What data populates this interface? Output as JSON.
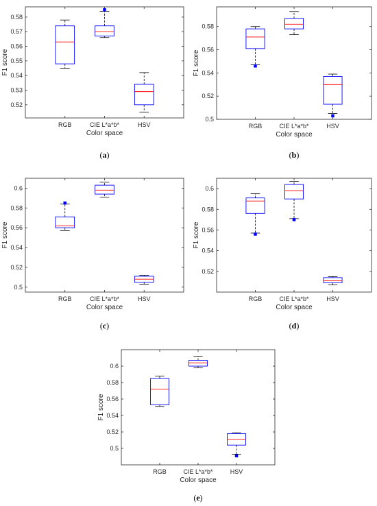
{
  "chart_data": [
    {
      "type": "box",
      "panel_label": "a",
      "xlabel": "Color space",
      "ylabel": "F1 score",
      "categories": [
        "RGB",
        "CIE L*a*b*",
        "HSV"
      ],
      "ylim": [
        0.511,
        0.587
      ],
      "yticks": [
        0.52,
        0.53,
        0.54,
        0.55,
        0.56,
        0.57,
        0.58
      ],
      "ytick_labels": [
        "0.52",
        "0.53",
        "0.54",
        "0.55",
        "0.56",
        "0.57",
        "0.58"
      ],
      "boxes": [
        {
          "whisker_low": 0.545,
          "q1": 0.548,
          "median": 0.563,
          "q3": 0.574,
          "whisker_high": 0.578,
          "outliers": []
        },
        {
          "whisker_low": 0.566,
          "q1": 0.567,
          "median": 0.57,
          "q3": 0.574,
          "whisker_high": 0.584,
          "outliers": [
            0.585
          ]
        },
        {
          "whisker_low": 0.515,
          "q1": 0.52,
          "median": 0.529,
          "q3": 0.534,
          "whisker_high": 0.542,
          "outliers": []
        }
      ]
    },
    {
      "type": "box",
      "panel_label": "b",
      "xlabel": "Color space",
      "ylabel": "F1 score",
      "categories": [
        "RGB",
        "CIE L*a*b*",
        "HSV"
      ],
      "ylim": [
        0.5,
        0.597
      ],
      "yticks": [
        0.5,
        0.52,
        0.54,
        0.56,
        0.58
      ],
      "ytick_labels": [
        "0.5",
        "0.52",
        "0.54",
        "0.56",
        "0.58"
      ],
      "boxes": [
        {
          "whisker_low": 0.547,
          "q1": 0.561,
          "median": 0.571,
          "q3": 0.578,
          "whisker_high": 0.58,
          "outliers": [
            0.546
          ]
        },
        {
          "whisker_low": 0.573,
          "q1": 0.578,
          "median": 0.582,
          "q3": 0.587,
          "whisker_high": 0.593,
          "outliers": []
        },
        {
          "whisker_low": 0.505,
          "q1": 0.513,
          "median": 0.53,
          "q3": 0.537,
          "whisker_high": 0.539,
          "outliers": [
            0.503
          ]
        }
      ]
    },
    {
      "type": "box",
      "panel_label": "c",
      "xlabel": "Color space",
      "ylabel": "F1 score",
      "categories": [
        "RGB",
        "CIE L*a*b*",
        "HSV"
      ],
      "ylim": [
        0.495,
        0.61
      ],
      "yticks": [
        0.5,
        0.52,
        0.54,
        0.56,
        0.58,
        0.6
      ],
      "ytick_labels": [
        "0.5",
        "0.52",
        "0.54",
        "0.56",
        "0.58",
        "0.6"
      ],
      "boxes": [
        {
          "whisker_low": 0.557,
          "q1": 0.56,
          "median": 0.562,
          "q3": 0.571,
          "whisker_high": 0.584,
          "outliers": [
            0.585
          ]
        },
        {
          "whisker_low": 0.591,
          "q1": 0.594,
          "median": 0.598,
          "q3": 0.603,
          "whisker_high": 0.606,
          "outliers": []
        },
        {
          "whisker_low": 0.503,
          "q1": 0.505,
          "median": 0.508,
          "q3": 0.511,
          "whisker_high": 0.512,
          "outliers": []
        }
      ]
    },
    {
      "type": "box",
      "panel_label": "d",
      "xlabel": "Color space",
      "ylabel": "F1 score",
      "categories": [
        "RGB",
        "CIE L*a*b*",
        "HSV"
      ],
      "ylim": [
        0.5,
        0.61
      ],
      "yticks": [
        0.52,
        0.54,
        0.56,
        0.58,
        0.6
      ],
      "ytick_labels": [
        "0.52",
        "0.54",
        "0.56",
        "0.58",
        "0.6"
      ],
      "boxes": [
        {
          "whisker_low": 0.557,
          "q1": 0.576,
          "median": 0.588,
          "q3": 0.591,
          "whisker_high": 0.595,
          "outliers": [
            0.556
          ]
        },
        {
          "whisker_low": 0.571,
          "q1": 0.59,
          "median": 0.598,
          "q3": 0.604,
          "whisker_high": 0.607,
          "outliers": [
            0.57
          ]
        },
        {
          "whisker_low": 0.507,
          "q1": 0.509,
          "median": 0.511,
          "q3": 0.514,
          "whisker_high": 0.515,
          "outliers": []
        }
      ]
    },
    {
      "type": "box",
      "panel_label": "e",
      "xlabel": "Color space",
      "ylabel": "F1 score",
      "categories": [
        "RGB",
        "CIE L*a*b*",
        "HSV"
      ],
      "ylim": [
        0.48,
        0.62
      ],
      "yticks": [
        0.5,
        0.52,
        0.54,
        0.56,
        0.58,
        0.6
      ],
      "ytick_labels": [
        "0.5",
        "0.52",
        "0.54",
        "0.56",
        "0.58",
        "0.6"
      ],
      "boxes": [
        {
          "whisker_low": 0.551,
          "q1": 0.553,
          "median": 0.572,
          "q3": 0.585,
          "whisker_high": 0.588,
          "outliers": []
        },
        {
          "whisker_low": 0.598,
          "q1": 0.6,
          "median": 0.604,
          "q3": 0.607,
          "whisker_high": 0.612,
          "outliers": []
        },
        {
          "whisker_low": 0.493,
          "q1": 0.504,
          "median": 0.511,
          "q3": 0.518,
          "whisker_high": 0.519,
          "outliers": [
            0.491
          ]
        }
      ]
    }
  ],
  "colors": {
    "box": "#0000ff",
    "median": "#ff0000",
    "whisker": "#000000",
    "outlier": "#0000ff",
    "axes": "#262626"
  }
}
